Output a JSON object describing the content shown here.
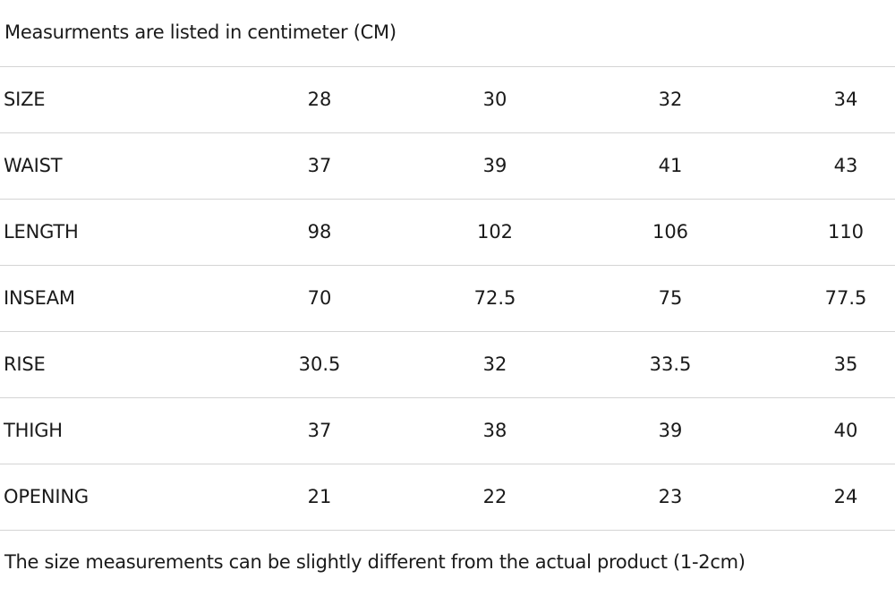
{
  "header_note": "Measurments are listed in centimeter (CM)",
  "table": {
    "rows": [
      {
        "label": "SIZE",
        "values": [
          "28",
          "30",
          "32",
          "34"
        ]
      },
      {
        "label": "WAIST",
        "values": [
          "37",
          "39",
          "41",
          "43"
        ]
      },
      {
        "label": "LENGTH",
        "values": [
          "98",
          "102",
          "106",
          "110"
        ]
      },
      {
        "label": "INSEAM",
        "values": [
          "70",
          "72.5",
          "75",
          "77.5"
        ]
      },
      {
        "label": "RISE",
        "values": [
          "30.5",
          "32",
          "33.5",
          "35"
        ]
      },
      {
        "label": "THIGH",
        "values": [
          "37",
          "38",
          "39",
          "40"
        ]
      },
      {
        "label": "OPENING",
        "values": [
          "21",
          "22",
          "23",
          "24"
        ]
      }
    ]
  },
  "footer_note": "The size measurements can be slightly different from the actual product (1-2cm)"
}
